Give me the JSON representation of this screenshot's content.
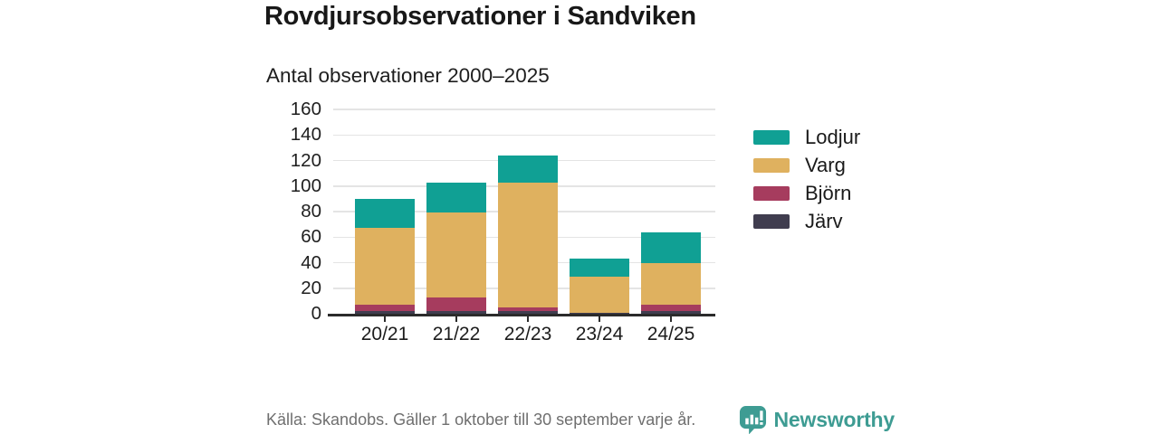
{
  "header": {
    "title": "Rovdjursobservationer i Sandviken",
    "subtitle": "Antal observationer 2000–2025"
  },
  "chart_data": {
    "type": "bar",
    "stacked": true,
    "categories": [
      "20/21",
      "21/22",
      "22/23",
      "23/24",
      "24/25"
    ],
    "series": [
      {
        "name": "Lodjur",
        "color": "#10a094",
        "values": [
          23,
          24,
          21,
          14,
          24
        ]
      },
      {
        "name": "Varg",
        "color": "#dfb15f",
        "values": [
          60,
          66,
          98,
          28,
          33
        ]
      },
      {
        "name": "Björn",
        "color": "#a63c5e",
        "values": [
          5,
          11,
          3,
          0,
          5
        ]
      },
      {
        "name": "Järv",
        "color": "#403d4f",
        "values": [
          2,
          2,
          2,
          1,
          2
        ]
      }
    ],
    "totals": [
      90,
      103,
      124,
      43,
      64
    ],
    "title": "Rovdjursobservationer i Sandviken",
    "subtitle": "Antal observationer 2000–2025",
    "xlabel": "",
    "ylabel": "",
    "ylim": [
      0,
      160
    ],
    "ytick_step": 20,
    "yticks": [
      0,
      20,
      40,
      60,
      80,
      100,
      120,
      140,
      160
    ],
    "grid": "horizontal",
    "grid_color": "#e4e4e4",
    "axis_color": "#2b2b2b",
    "legend_position": "right",
    "stack_order_bottom_to_top": [
      "Järv",
      "Björn",
      "Varg",
      "Lodjur"
    ]
  },
  "footer": {
    "source": "Källa: Skandobs. Gäller 1 oktober till 30 september varje år.",
    "brand": "Newsworthy",
    "brand_color": "#3e9c93",
    "logo_icon": "speech-bubble-bar-chart-icon"
  }
}
